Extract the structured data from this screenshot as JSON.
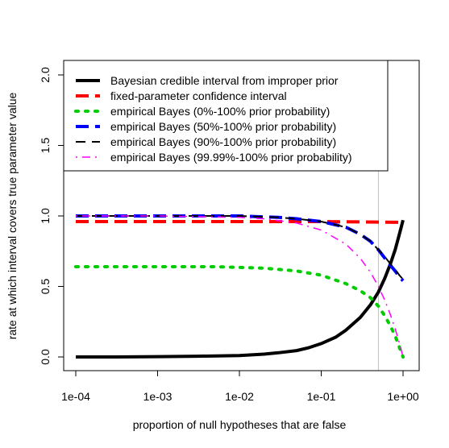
{
  "chart_data": {
    "type": "line",
    "xscale": "log10",
    "xlabel": "proportion of null hypotheses that are false",
    "ylabel": "rate at which interval covers true parameter value",
    "xlim": [
      0.0001,
      1
    ],
    "ylim": [
      0,
      2.0
    ],
    "x_ticks": [
      "1e-04",
      "1e-03",
      "1e-02",
      "1e-01",
      "1e+00"
    ],
    "x_tick_values": [
      0.0001,
      0.001,
      0.01,
      0.1,
      1
    ],
    "y_ticks": [
      "0.0",
      "0.5",
      "1.0",
      "1.5",
      "2.0"
    ],
    "y_tick_values": [
      0,
      0.5,
      1.0,
      1.5,
      2.0
    ],
    "reference_line": {
      "x": 0.5,
      "color": "#bebebe"
    },
    "legend_position": "top-left",
    "grid": false,
    "series": [
      {
        "name": "Bayesian credible interval from improper prior",
        "color": "#000000",
        "dash": "solid",
        "width": 4,
        "x": [
          0.0001,
          0.0003,
          0.001,
          0.003,
          0.01,
          0.02,
          0.03,
          0.05,
          0.07,
          0.1,
          0.15,
          0.2,
          0.3,
          0.4,
          0.5,
          0.6,
          0.7,
          0.8,
          0.9,
          1.0
        ],
        "y": [
          0.0,
          0.0,
          0.002,
          0.005,
          0.01,
          0.02,
          0.03,
          0.045,
          0.065,
          0.095,
          0.14,
          0.19,
          0.28,
          0.37,
          0.46,
          0.56,
          0.66,
          0.76,
          0.87,
          0.97
        ]
      },
      {
        "name": "fixed-parameter confidence interval",
        "color": "#ff0000",
        "dash": "longdash",
        "width": 4,
        "x": [
          0.0001,
          0.001,
          0.01,
          0.1,
          1.0
        ],
        "y": [
          0.96,
          0.96,
          0.96,
          0.96,
          0.955
        ]
      },
      {
        "name": "empirical Bayes (0%-100% prior probability)",
        "color": "#00cc00",
        "dash": "dotted",
        "width": 4,
        "x": [
          0.0001,
          0.001,
          0.005,
          0.01,
          0.02,
          0.05,
          0.1,
          0.2,
          0.3,
          0.4,
          0.5,
          0.6,
          0.7,
          0.8,
          0.9,
          1.0
        ],
        "y": [
          0.64,
          0.64,
          0.64,
          0.635,
          0.63,
          0.61,
          0.58,
          0.52,
          0.47,
          0.42,
          0.36,
          0.29,
          0.22,
          0.15,
          0.07,
          0.0
        ]
      },
      {
        "name": "empirical Bayes (50%-100% prior probability)",
        "color": "#0000ff",
        "dash": "longdash",
        "width": 4,
        "x": [
          0.0001,
          0.001,
          0.01,
          0.03,
          0.05,
          0.1,
          0.2,
          0.3,
          0.4,
          0.5,
          0.6,
          0.7,
          0.8,
          0.9,
          1.0
        ],
        "y": [
          1.0,
          1.0,
          1.0,
          0.99,
          0.98,
          0.96,
          0.92,
          0.87,
          0.82,
          0.76,
          0.7,
          0.65,
          0.61,
          0.57,
          0.54
        ]
      },
      {
        "name": "empirical Bayes (90%-100% prior probability)",
        "color": "#000000",
        "dash": "dashed",
        "width": 2,
        "x": [
          0.0001,
          0.001,
          0.01,
          0.03,
          0.05,
          0.1,
          0.2,
          0.3,
          0.4,
          0.5,
          0.6,
          0.7,
          0.8,
          0.9,
          1.0
        ],
        "y": [
          1.0,
          1.0,
          1.0,
          0.99,
          0.98,
          0.96,
          0.92,
          0.87,
          0.82,
          0.76,
          0.71,
          0.66,
          0.62,
          0.58,
          0.55
        ]
      },
      {
        "name": "empirical Bayes (99.99%-100% prior probability)",
        "color": "#ff00ff",
        "dash": "dotdash",
        "width": 1.5,
        "x": [
          0.0001,
          0.001,
          0.01,
          0.02,
          0.05,
          0.1,
          0.2,
          0.3,
          0.4,
          0.5,
          0.6,
          0.7,
          0.8,
          0.9,
          1.0
        ],
        "y": [
          1.0,
          1.0,
          0.99,
          0.98,
          0.95,
          0.9,
          0.8,
          0.7,
          0.6,
          0.5,
          0.4,
          0.3,
          0.2,
          0.1,
          0.0
        ]
      }
    ]
  }
}
